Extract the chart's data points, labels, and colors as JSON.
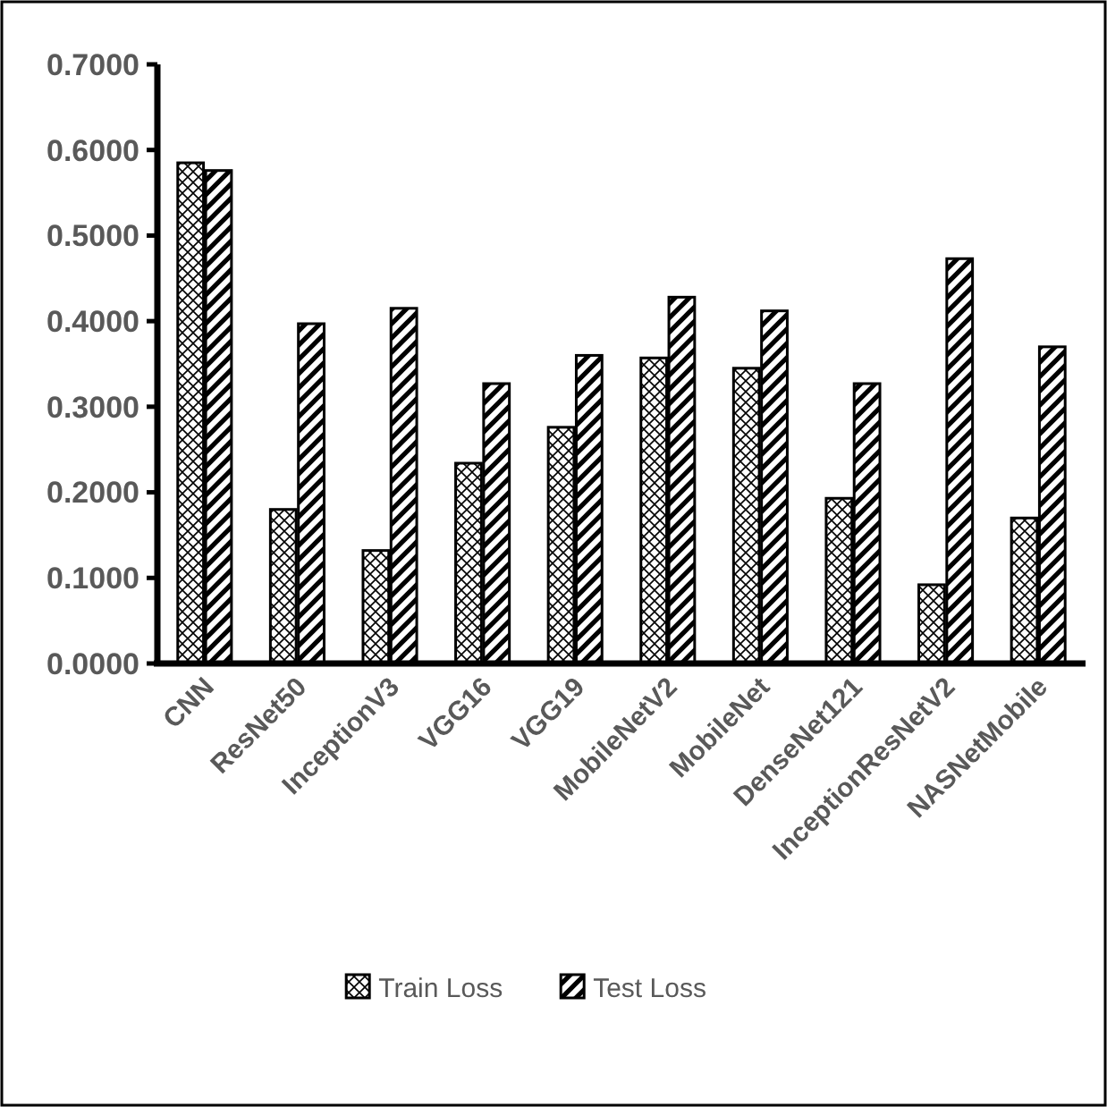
{
  "chart_data": {
    "type": "bar",
    "categories": [
      "CNN",
      "ResNet50",
      "InceptionV3",
      "VGG16",
      "VGG19",
      "MobileNetV2",
      "MobileNet",
      "DenseNet121",
      "InceptionResNetV2",
      "NASNetMobile"
    ],
    "series": [
      {
        "name": "Train Loss",
        "color": "#000000",
        "values": [
          0.585,
          0.18,
          0.132,
          0.234,
          0.276,
          0.357,
          0.345,
          0.193,
          0.092,
          0.17
        ]
      },
      {
        "name": "Test Loss",
        "color": "#000000",
        "values": [
          0.576,
          0.397,
          0.415,
          0.327,
          0.36,
          0.428,
          0.412,
          0.327,
          0.473,
          0.37
        ]
      }
    ],
    "ylim": [
      0,
      0.7
    ],
    "yticks": [
      {
        "value": 0,
        "label": "0.0000"
      },
      {
        "value": 0.1,
        "label": "0.1000"
      },
      {
        "value": 0.2,
        "label": "0.2000"
      },
      {
        "value": 0.3,
        "label": "0.3000"
      },
      {
        "value": 0.4,
        "label": "0.4000"
      },
      {
        "value": 0.5,
        "label": "0.5000"
      },
      {
        "value": 0.6,
        "label": "0.6000"
      },
      {
        "value": 0.7,
        "label": "0.7000"
      }
    ],
    "grid": false,
    "legend": "bottom"
  }
}
